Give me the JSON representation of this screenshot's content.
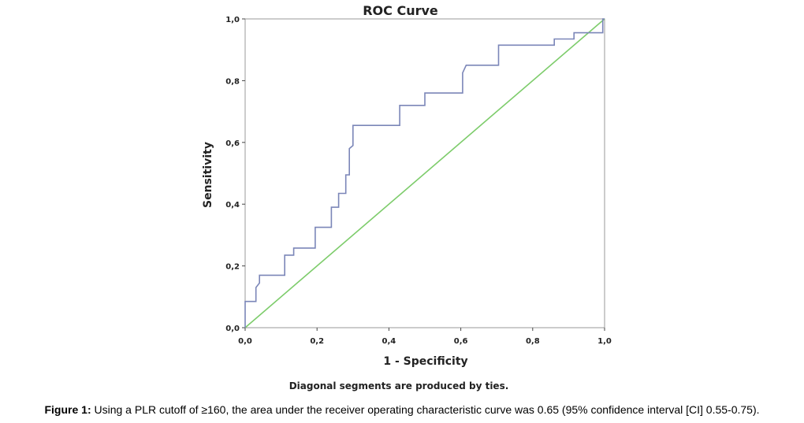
{
  "chart_data": {
    "type": "line",
    "title": "ROC Curve",
    "xlabel": "1 - Specificity",
    "ylabel": "Sensitivity",
    "xlim": [
      0,
      1
    ],
    "ylim": [
      0,
      1
    ],
    "x_ticks": [
      "0,0",
      "0,2",
      "0,4",
      "0,6",
      "0,8",
      "1,0"
    ],
    "y_ticks": [
      "0,0",
      "0,2",
      "0,4",
      "0,6",
      "0,8",
      "1,0"
    ],
    "grid": false,
    "footnote": "Diagonal segments are produced by ties.",
    "series": [
      {
        "name": "ROC",
        "color": "#7b86b8",
        "points": [
          [
            0.0,
            0.0
          ],
          [
            0.0,
            0.085
          ],
          [
            0.03,
            0.085
          ],
          [
            0.03,
            0.13
          ],
          [
            0.04,
            0.145
          ],
          [
            0.04,
            0.17
          ],
          [
            0.11,
            0.17
          ],
          [
            0.11,
            0.235
          ],
          [
            0.135,
            0.235
          ],
          [
            0.135,
            0.258
          ],
          [
            0.195,
            0.258
          ],
          [
            0.195,
            0.325
          ],
          [
            0.24,
            0.325
          ],
          [
            0.24,
            0.39
          ],
          [
            0.26,
            0.39
          ],
          [
            0.26,
            0.435
          ],
          [
            0.28,
            0.435
          ],
          [
            0.28,
            0.495
          ],
          [
            0.29,
            0.495
          ],
          [
            0.29,
            0.58
          ],
          [
            0.3,
            0.59
          ],
          [
            0.3,
            0.655
          ],
          [
            0.43,
            0.655
          ],
          [
            0.43,
            0.72
          ],
          [
            0.5,
            0.72
          ],
          [
            0.5,
            0.76
          ],
          [
            0.605,
            0.76
          ],
          [
            0.605,
            0.825
          ],
          [
            0.615,
            0.85
          ],
          [
            0.705,
            0.85
          ],
          [
            0.705,
            0.915
          ],
          [
            0.86,
            0.915
          ],
          [
            0.86,
            0.935
          ],
          [
            0.915,
            0.935
          ],
          [
            0.915,
            0.955
          ],
          [
            0.995,
            0.955
          ],
          [
            0.995,
            1.0
          ],
          [
            1.0,
            1.0
          ]
        ]
      },
      {
        "name": "Reference Line",
        "color": "#7dcc6b",
        "points": [
          [
            0,
            0
          ],
          [
            1,
            1
          ]
        ]
      }
    ]
  },
  "caption": {
    "label": "Figure 1:",
    "text": "Using a PLR cutoff of ≥160, the area under the receiver operating characteristic curve was 0.65 (95% confidence interval [CI] 0.55-0.75)."
  }
}
